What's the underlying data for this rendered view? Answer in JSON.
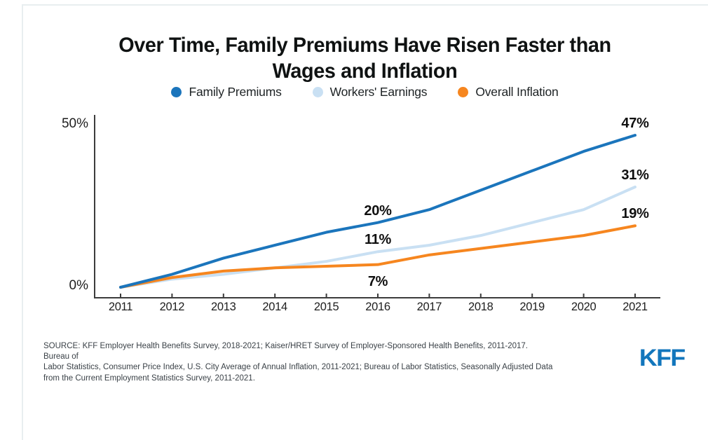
{
  "header": {
    "title_line1": "Over Time, Family Premiums Have Risen Faster than",
    "title_line2": "Wages and Inflation"
  },
  "chart_data": {
    "type": "line",
    "x": [
      2011,
      2012,
      2013,
      2014,
      2015,
      2016,
      2017,
      2018,
      2019,
      2020,
      2021
    ],
    "series": [
      {
        "name": "Family Premiums",
        "color": "#1b75bc",
        "values": [
          0,
          4,
          9,
          13,
          17,
          20,
          24,
          30,
          36,
          42,
          47
        ]
      },
      {
        "name": "Workers' Earnings",
        "color": "#c9e0f3",
        "values": [
          0,
          2.5,
          4,
          6,
          8,
          11,
          13,
          16,
          20,
          24,
          31
        ]
      },
      {
        "name": "Overall Inflation",
        "color": "#f6861f",
        "values": [
          0,
          3,
          5,
          6,
          6.5,
          7,
          10,
          12,
          14,
          16,
          19
        ]
      }
    ],
    "annotations": [
      {
        "series": 0,
        "year": 2016,
        "text": "20%",
        "placement": "above"
      },
      {
        "series": 1,
        "year": 2016,
        "text": "11%",
        "placement": "above"
      },
      {
        "series": 2,
        "year": 2016,
        "text": "7%",
        "placement": "below"
      },
      {
        "series": 0,
        "year": 2021,
        "text": "47%",
        "placement": "above"
      },
      {
        "series": 1,
        "year": 2021,
        "text": "31%",
        "placement": "above"
      },
      {
        "series": 2,
        "year": 2021,
        "text": "19%",
        "placement": "above"
      }
    ],
    "y_ticks": [
      {
        "label": "50%",
        "value": 50
      },
      {
        "label": "0%",
        "value": 0
      }
    ],
    "ylim": [
      0,
      50
    ],
    "grid": false,
    "legend_position": "top",
    "axis_color": "#3c3c3c"
  },
  "footer": {
    "source_lines": [
      "SOURCE: KFF Employer Health Benefits Survey, 2018-2021; Kaiser/HRET Survey of Employer-Sponsored Health Benefits, 2011-2017. Bureau of",
      "Labor Statistics, Consumer Price Index, U.S. City Average of Annual Inflation, 2011-2021; Bureau of Labor Statistics, Seasonally Adjusted Data",
      "from the Current Employment Statistics Survey, 2011-2021."
    ],
    "logo_text": "KFF"
  }
}
